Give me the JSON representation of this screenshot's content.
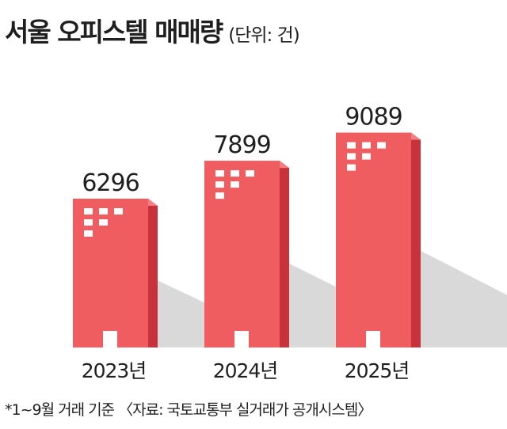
{
  "title": "서울 오피스텔 매매량",
  "unit": "(단위: 건)",
  "footnote": "*1~9월 거래 기준 〈자료: 국토교통부 실거래가 공개시스템〉",
  "colors": {
    "bar_front": "#f05d61",
    "bar_side": "#c8323a",
    "bar_top": "#f47f83",
    "shadow": "#d9d9d9",
    "window": "#ffffff",
    "text": "#1f1f1f"
  },
  "chart_data": {
    "type": "bar",
    "categories": [
      "2023년",
      "2024년",
      "2025년"
    ],
    "values": [
      6296,
      7899,
      9089
    ],
    "title": "서울 오피스텔 매매량",
    "xlabel": "",
    "ylabel": "",
    "unit": "건"
  }
}
